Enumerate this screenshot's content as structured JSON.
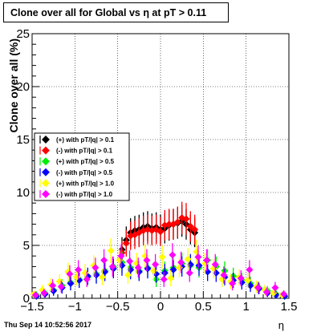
{
  "title_text": "Clone  over all for Global vs  η at pT > 0.11",
  "timestamp": "Thu Sep 14 10:52:56 2017",
  "chart_data": {
    "type": "scatter",
    "title": "Clone  over all for Global vs  η at pT > 0.11",
    "xlabel": "η",
    "ylabel": "Clone  over all (%)",
    "xlim": [
      -1.5,
      1.5
    ],
    "ylim": [
      0,
      25
    ],
    "xticks": [
      "−1.5",
      "−1",
      "−0.5",
      "0",
      "0.5",
      "1",
      "1.5"
    ],
    "yticks": [
      "0",
      "5",
      "10",
      "15",
      "20",
      "25"
    ],
    "grid": true,
    "legend_position": "left",
    "series": [
      {
        "name": "(+) with pT/|q| > 0.1",
        "color": "#000000",
        "marker": "diamond",
        "x": [
          -0.45,
          -0.4,
          -0.35,
          -0.3,
          -0.25,
          -0.2,
          -0.15,
          -0.1,
          -0.05,
          0.0,
          0.05,
          0.1,
          0.15,
          0.2,
          0.25,
          0.3,
          0.35,
          0.4
        ],
        "y": [
          4.6,
          5.5,
          6.2,
          6.4,
          6.5,
          6.7,
          6.8,
          6.6,
          6.7,
          6.5,
          6.6,
          6.9,
          7.0,
          7.1,
          7.3,
          7.0,
          6.5,
          6.2
        ]
      },
      {
        "name": "(-) with pT/|q| > 0.1",
        "color": "#ff0000",
        "marker": "diamond",
        "x": [
          -0.45,
          -0.4,
          -0.35,
          -0.3,
          -0.25,
          -0.2,
          -0.15,
          -0.1,
          -0.05,
          0.0,
          0.05,
          0.1,
          0.15,
          0.2,
          0.25,
          0.3,
          0.35,
          0.4
        ],
        "y": [
          4.3,
          5.2,
          5.9,
          6.0,
          6.2,
          6.4,
          6.5,
          6.4,
          6.5,
          6.3,
          6.9,
          7.0,
          7.0,
          7.2,
          7.6,
          7.5,
          6.8,
          6.5
        ]
      },
      {
        "name": "(+) with pT/|q| > 0.5",
        "color": "#00ee00",
        "marker": "diamond",
        "x": [
          -1.45,
          -1.35,
          -1.25,
          -1.15,
          -1.05,
          -0.95,
          -0.85,
          -0.75,
          -0.65,
          -0.55,
          -0.45,
          -0.35,
          -0.25,
          -0.15,
          -0.05,
          0.05,
          0.15,
          0.25,
          0.35,
          0.45,
          0.55,
          0.65,
          0.75,
          0.85,
          0.95,
          1.05,
          1.15,
          1.25,
          1.35,
          1.45
        ],
        "y": [
          0.3,
          0.5,
          0.8,
          1.2,
          1.5,
          1.8,
          2.0,
          2.3,
          2.6,
          3.0,
          3.4,
          2.9,
          2.6,
          2.9,
          1.8,
          2.6,
          2.9,
          3.3,
          3.1,
          2.9,
          3.6,
          3.0,
          2.6,
          2.1,
          1.7,
          1.4,
          1.0,
          0.7,
          0.4,
          0.2
        ]
      },
      {
        "name": "(-) with pT/|q| > 0.5",
        "color": "#0000ff",
        "marker": "diamond",
        "x": [
          -1.45,
          -1.35,
          -1.25,
          -1.15,
          -1.05,
          -0.95,
          -0.85,
          -0.75,
          -0.65,
          -0.55,
          -0.45,
          -0.35,
          -0.25,
          -0.15,
          -0.05,
          0.05,
          0.15,
          0.25,
          0.35,
          0.45,
          0.55,
          0.65,
          0.75,
          0.85,
          0.95,
          1.05,
          1.15,
          1.25,
          1.35,
          1.45
        ],
        "y": [
          0.2,
          0.4,
          0.7,
          1.0,
          1.4,
          1.7,
          2.1,
          2.2,
          2.5,
          2.8,
          3.1,
          2.7,
          2.5,
          2.8,
          2.3,
          2.4,
          2.7,
          3.0,
          3.2,
          3.1,
          2.5,
          2.4,
          2.0,
          1.7,
          1.5,
          1.2,
          0.9,
          0.5,
          0.3,
          0.2
        ]
      },
      {
        "name": "(+) with pT/|q| > 1.0",
        "color": "#ffff00",
        "marker": "diamond",
        "x": [
          -1.48,
          -1.38,
          -1.28,
          -1.18,
          -1.08,
          -0.98,
          -0.88,
          -0.78,
          -0.68,
          -0.58,
          -0.48,
          -0.38,
          -0.28,
          -0.18,
          -0.08,
          0.02,
          0.12,
          0.22,
          0.32,
          0.42,
          0.52,
          0.62,
          0.72,
          0.82,
          0.92,
          1.02,
          1.12,
          1.22,
          1.32,
          1.42
        ],
        "y": [
          0.4,
          0.8,
          1.3,
          1.6,
          2.5,
          2.0,
          2.4,
          3.1,
          2.0,
          4.5,
          3.6,
          2.2,
          3.3,
          4.0,
          2.6,
          3.9,
          1.9,
          2.9,
          3.7,
          4.4,
          3.3,
          2.8,
          1.8,
          1.6,
          2.0,
          1.7,
          1.1,
          0.8,
          0.5,
          0.3
        ]
      },
      {
        "name": "(-) with pT/|q| > 1.0",
        "color": "#ff00ff",
        "marker": "diamond",
        "x": [
          -1.46,
          -1.36,
          -1.26,
          -1.16,
          -1.06,
          -0.96,
          -0.86,
          -0.76,
          -0.66,
          -0.56,
          -0.46,
          -0.36,
          -0.26,
          -0.16,
          -0.06,
          0.04,
          0.14,
          0.24,
          0.34,
          0.44,
          0.54,
          0.64,
          0.74,
          0.84,
          0.94,
          1.04,
          1.14,
          1.24,
          1.34,
          1.44
        ],
        "y": [
          0.3,
          0.5,
          1.2,
          1.1,
          2.3,
          2.7,
          1.8,
          2.9,
          3.6,
          3.0,
          4.0,
          3.5,
          2.9,
          3.6,
          3.2,
          1.8,
          4.1,
          3.4,
          2.4,
          3.9,
          3.6,
          3.2,
          2.2,
          1.4,
          1.9,
          2.7,
          1.0,
          0.6,
          1.0,
          0.4
        ]
      }
    ]
  }
}
